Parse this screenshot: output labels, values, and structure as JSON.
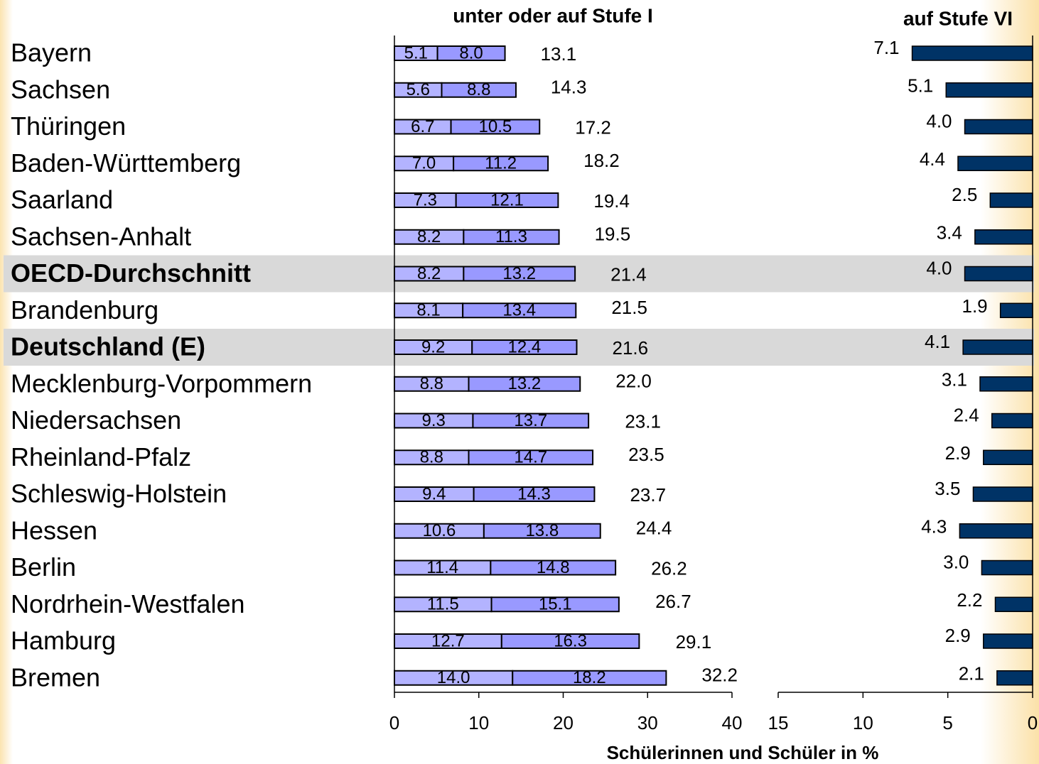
{
  "chart_data": [
    {
      "type": "stacked-bar-horizontal",
      "title": "unter oder auf Stufe I",
      "categories": [
        "Bayern",
        "Sachsen",
        "Thüringen",
        "Baden-Württemberg",
        "Saarland",
        "Sachsen-Anhalt",
        "OECD-Durchschnitt",
        "Brandenburg",
        "Deutschland (E)",
        "Mecklenburg-Vorpommern",
        "Niedersachsen",
        "Rheinland-Pfalz",
        "Schleswig-Holstein",
        "Hessen",
        "Berlin",
        "Nordrhein-Westfalen",
        "Hamburg",
        "Bremen"
      ],
      "highlight_rows": [
        6,
        8
      ],
      "series": [
        {
          "color": "#b3b3ff",
          "values": [
            5.1,
            5.6,
            6.7,
            7.0,
            7.3,
            8.2,
            8.2,
            8.1,
            9.2,
            8.8,
            9.3,
            8.8,
            9.4,
            10.6,
            11.4,
            11.5,
            12.7,
            14.0
          ],
          "value_labels": [
            "5.1",
            "5.6",
            "6.7",
            "7.0",
            "7.3",
            "8.2",
            "8.2",
            "8.1",
            "9.2",
            "8.8",
            "9.3",
            "8.8",
            "9.4",
            "10.6",
            "11.4",
            "11.5",
            "12.7",
            "14.0"
          ]
        },
        {
          "color": "#9999ff",
          "values": [
            8.0,
            8.8,
            10.5,
            11.2,
            12.1,
            11.3,
            13.2,
            13.4,
            12.4,
            13.2,
            13.7,
            14.7,
            14.3,
            13.8,
            14.8,
            15.1,
            16.3,
            18.2
          ],
          "value_labels": [
            "8.0",
            "8.8",
            "10.5",
            "11.2",
            "12.1",
            "11.3",
            "13.2",
            "13.4",
            "12.4",
            "13.2",
            "13.7",
            "14.7",
            "14.3",
            "13.8",
            "14.8",
            "15.1",
            "16.3",
            "18.2"
          ]
        }
      ],
      "totals": [
        13.1,
        14.3,
        17.2,
        18.2,
        19.4,
        19.5,
        21.4,
        21.5,
        21.6,
        22.0,
        23.1,
        23.5,
        23.7,
        24.4,
        26.2,
        26.7,
        29.1,
        32.2
      ],
      "total_labels": [
        "13.1",
        "14.3",
        "17.2",
        "18.2",
        "19.4",
        "19.5",
        "21.4",
        "21.5",
        "21.6",
        "22.0",
        "23.1",
        "23.5",
        "23.7",
        "24.4",
        "26.2",
        "26.7",
        "29.1",
        "32.2"
      ],
      "xlim": [
        0,
        40
      ],
      "xticks": [
        0,
        10,
        20,
        30,
        40
      ]
    },
    {
      "type": "bar-horizontal",
      "title": "auf Stufe VI",
      "color": "#003366",
      "values": [
        7.1,
        5.1,
        4.0,
        4.4,
        2.5,
        3.4,
        4.0,
        1.9,
        4.1,
        3.1,
        2.4,
        2.9,
        3.5,
        4.3,
        3.0,
        2.2,
        2.9,
        2.1
      ],
      "value_labels": [
        "7.1",
        "5.1",
        "4.0",
        "4.4",
        "2.5",
        "3.4",
        "4.0",
        "1.9",
        "4.1",
        "3.1",
        "2.4",
        "2.9",
        "3.5",
        "4.3",
        "3.0",
        "2.2",
        "2.9",
        "2.1"
      ],
      "xlim": [
        15,
        0
      ],
      "xticks": [
        15,
        10,
        5,
        0
      ],
      "xlabel": "Schülerinnen und Schüler in %"
    }
  ]
}
